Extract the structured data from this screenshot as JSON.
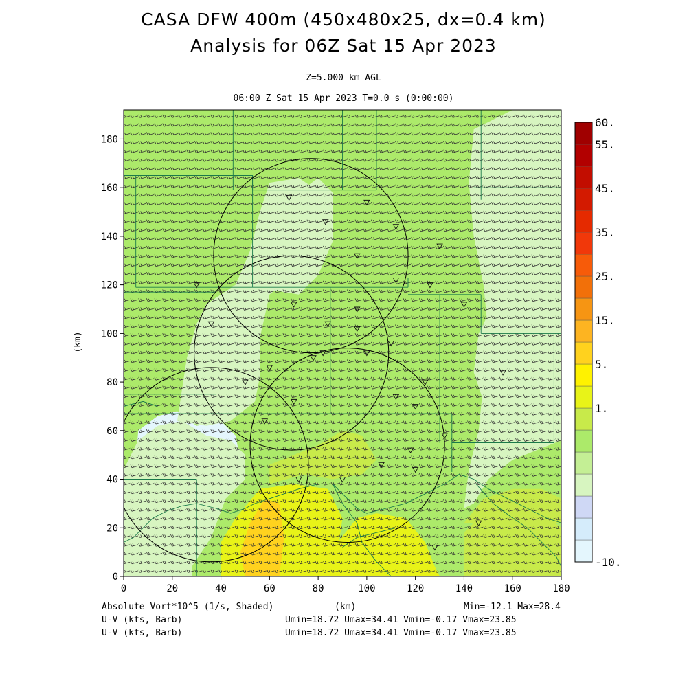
{
  "header": {
    "title_line1": "CASA DFW 400m (450x480x25, dx=0.4 km)",
    "title_line2": "Analysis for 06Z Sat 15 Apr 2023",
    "level": "Z=5.000 km AGL",
    "time": "06:00 Z Sat 15 Apr 2023    T=0.0 s (0:00:00)"
  },
  "footer": {
    "field1": "Absolute Vort*10^5 (1/s, Shaded)",
    "xunit": "(km)",
    "minmax": "Min=-12.1 Max=28.4",
    "field2": "U-V (kts, Barb)",
    "stats2": "Umin=18.72 Umax=34.41 Vmin=-0.17 Vmax=23.85",
    "field3": "U-V (kts, Barb)",
    "stats3": "Umin=18.72 Umax=34.41 Vmin=-0.17 Vmax=23.85"
  },
  "colors": {
    "levels": [
      -10,
      1,
      5,
      15,
      25,
      35,
      45,
      55,
      60
    ],
    "bands": [
      "#e4f6fd",
      "#d5ecfb",
      "#cfd8f5",
      "#d7f5c0",
      "#c4ef95",
      "#acea6a",
      "#c8ea4a",
      "#e8f318",
      "#fff200",
      "#ffd21e",
      "#fdb421",
      "#f69513",
      "#f27009",
      "#f75b09",
      "#f1380a",
      "#e52a00",
      "#d31a00",
      "#c20d00",
      "#b20000",
      "#a00000"
    ]
  },
  "chart_data": {
    "type": "heatmap",
    "field": "Absolute Vort*10^5 (1/s, Shaded)",
    "xlabel": "(km)",
    "ylabel": "(km)",
    "xlim": [
      0,
      180
    ],
    "ylim": [
      0,
      192
    ],
    "x_ticks": [
      0,
      20,
      40,
      60,
      80,
      100,
      120,
      140,
      160,
      180
    ],
    "y_ticks": [
      0,
      20,
      40,
      60,
      80,
      100,
      120,
      140,
      160,
      180
    ],
    "colorbar_labels": [
      "60.",
      "55.",
      "45.",
      "35.",
      "25.",
      "15.",
      "5.",
      "1.",
      "-10."
    ],
    "min": -12.1,
    "max": 28.4,
    "wind_barbs": {
      "units": "kts",
      "umin": 18.72,
      "umax": 34.41,
      "vmin": -0.17,
      "vmax": 23.85
    },
    "radar_rings": [
      {
        "cx": 77,
        "cy": 132,
        "r": 40
      },
      {
        "cx": 69,
        "cy": 92,
        "r": 40
      },
      {
        "cx": 92,
        "cy": 54,
        "r": 40
      },
      {
        "cx": 36,
        "cy": 46,
        "r": 40
      }
    ],
    "regions": [
      {
        "shade": -5,
        "pts": [
          [
            0,
            0
          ],
          [
            0,
            34
          ],
          [
            4,
            36
          ],
          [
            8,
            40
          ],
          [
            18,
            40
          ],
          [
            26,
            32
          ],
          [
            34,
            34
          ],
          [
            38,
            38
          ],
          [
            38,
            30
          ],
          [
            26,
            0
          ]
        ]
      },
      {
        "shade": -5,
        "pts": [
          [
            4,
            34
          ],
          [
            6,
            60
          ],
          [
            14,
            66
          ],
          [
            22,
            68
          ],
          [
            30,
            62
          ],
          [
            40,
            64
          ],
          [
            46,
            58
          ],
          [
            48,
            48
          ],
          [
            44,
            40
          ],
          [
            34,
            36
          ],
          [
            20,
            34
          ]
        ]
      },
      {
        "shade": 3,
        "pts": [
          [
            0,
            0
          ],
          [
            0,
            44
          ],
          [
            6,
            56
          ],
          [
            14,
            62
          ],
          [
            24,
            64
          ],
          [
            34,
            58
          ],
          [
            44,
            56
          ],
          [
            50,
            50
          ],
          [
            50,
            40
          ],
          [
            42,
            32
          ],
          [
            36,
            16
          ],
          [
            28,
            4
          ],
          [
            28,
            0
          ]
        ]
      },
      {
        "shade": 3,
        "pts": [
          [
            22,
            64
          ],
          [
            26,
            90
          ],
          [
            30,
            104
          ],
          [
            34,
            112
          ],
          [
            46,
            120
          ],
          [
            52,
            134
          ],
          [
            56,
            150
          ],
          [
            60,
            162
          ],
          [
            72,
            164
          ],
          [
            78,
            160
          ],
          [
            78,
            140
          ],
          [
            70,
            124
          ],
          [
            60,
            116
          ],
          [
            56,
            98
          ],
          [
            56,
            82
          ],
          [
            54,
            72
          ],
          [
            44,
            64
          ],
          [
            34,
            62
          ]
        ]
      },
      {
        "shade": 3,
        "pts": [
          [
            60,
            118
          ],
          [
            66,
            140
          ],
          [
            72,
            158
          ],
          [
            80,
            164
          ],
          [
            86,
            158
          ],
          [
            86,
            138
          ],
          [
            80,
            124
          ],
          [
            72,
            116
          ]
        ]
      },
      {
        "shade": 3,
        "pts": [
          [
            140,
            28
          ],
          [
            142,
            44
          ],
          [
            146,
            60
          ],
          [
            148,
            80
          ],
          [
            150,
            100
          ],
          [
            148,
            120
          ],
          [
            144,
            140
          ],
          [
            142,
            162
          ],
          [
            144,
            184
          ],
          [
            160,
            192
          ],
          [
            180,
            192
          ],
          [
            180,
            56
          ],
          [
            170,
            52
          ],
          [
            160,
            48
          ],
          [
            150,
            40
          ],
          [
            144,
            30
          ]
        ]
      },
      {
        "shade": 3,
        "pts": [
          [
            144,
            84
          ],
          [
            146,
            100
          ],
          [
            150,
            108
          ],
          [
            160,
            102
          ],
          [
            170,
            96
          ],
          [
            178,
            80
          ],
          [
            176,
            64
          ],
          [
            168,
            56
          ],
          [
            158,
            58
          ],
          [
            150,
            66
          ]
        ]
      },
      {
        "shade": 20,
        "pts": [
          [
            40,
            0
          ],
          [
            40,
            14
          ],
          [
            46,
            24
          ],
          [
            56,
            36
          ],
          [
            70,
            38
          ],
          [
            84,
            36
          ],
          [
            90,
            24
          ],
          [
            88,
            10
          ],
          [
            84,
            0
          ]
        ]
      },
      {
        "shade": 30,
        "pts": [
          [
            50,
            0
          ],
          [
            48,
            10
          ],
          [
            52,
            22
          ],
          [
            58,
            32
          ],
          [
            64,
            30
          ],
          [
            66,
            16
          ],
          [
            64,
            0
          ]
        ]
      },
      {
        "shade": 22,
        "pts": [
          [
            84,
            0
          ],
          [
            88,
            14
          ],
          [
            96,
            24
          ],
          [
            104,
            26
          ],
          [
            116,
            24
          ],
          [
            124,
            14
          ],
          [
            128,
            4
          ],
          [
            130,
            0
          ]
        ]
      },
      {
        "shade": 18,
        "pts": [
          [
            60,
            38
          ],
          [
            74,
            42
          ],
          [
            86,
            40
          ],
          [
            98,
            42
          ],
          [
            104,
            48
          ],
          [
            98,
            58
          ],
          [
            90,
            60
          ],
          [
            80,
            54
          ],
          [
            70,
            50
          ],
          [
            60,
            46
          ]
        ]
      },
      {
        "shade": 18,
        "pts": [
          [
            140,
            0
          ],
          [
            140,
            18
          ],
          [
            148,
            26
          ],
          [
            160,
            30
          ],
          [
            172,
            26
          ],
          [
            180,
            20
          ],
          [
            180,
            0
          ]
        ]
      },
      {
        "shade": 18,
        "pts": [
          [
            140,
            22
          ],
          [
            148,
            32
          ],
          [
            160,
            36
          ],
          [
            172,
            36
          ],
          [
            180,
            32
          ],
          [
            180,
            22
          ]
        ]
      },
      {
        "shade": 10,
        "pts": [
          [
            0,
            150
          ],
          [
            6,
            172
          ],
          [
            14,
            186
          ],
          [
            24,
            192
          ],
          [
            44,
            192
          ],
          [
            52,
            184
          ],
          [
            58,
            170
          ],
          [
            50,
            160
          ],
          [
            36,
            156
          ],
          [
            18,
            152
          ]
        ]
      }
    ]
  }
}
